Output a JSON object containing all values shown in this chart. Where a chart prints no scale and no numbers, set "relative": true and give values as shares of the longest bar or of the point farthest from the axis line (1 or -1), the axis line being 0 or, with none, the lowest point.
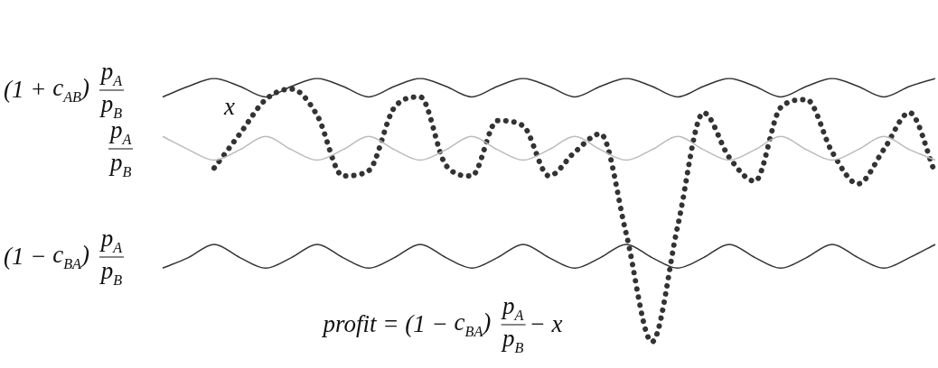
{
  "chart_data": {
    "type": "line",
    "relative": true,
    "legend": false,
    "marker": "none",
    "categories": [
      null,
      null,
      null,
      null,
      null,
      null,
      null,
      null,
      null,
      null,
      null,
      null,
      null,
      null,
      null,
      null,
      null,
      null,
      null,
      null,
      null,
      null,
      null,
      null,
      null,
      null,
      null,
      null,
      null,
      null,
      null
    ],
    "series": [
      {
        "name": "(1 + c$_{AB}$) p$_{A}$\np$_{B}$",
        "color": "#333333",
        "line_style": "solid",
        "values": [
          0.93,
          0.97,
          1.0,
          0.97,
          0.93,
          0.97,
          1.0,
          0.97,
          0.93,
          0.97,
          1.0,
          0.97,
          0.93,
          0.97,
          1.0,
          0.97,
          0.93,
          0.97,
          1.0,
          0.97,
          0.93,
          0.97,
          1.0,
          0.97,
          0.93,
          0.97,
          1.0,
          0.97,
          0.93,
          0.97,
          1.0
        ]
      },
      {
        "name": "p$_{A}$\np$_{B}$",
        "color": "#bbbbbb",
        "line_style": "solid",
        "values": [
          0.78,
          0.73,
          0.69,
          0.73,
          0.78,
          0.73,
          0.69,
          0.73,
          0.78,
          0.73,
          0.69,
          0.73,
          0.78,
          0.73,
          0.69,
          0.73,
          0.78,
          0.73,
          0.69,
          0.73,
          0.78,
          0.73,
          0.69,
          0.73,
          0.78,
          0.73,
          0.69,
          0.73,
          0.78,
          0.73,
          0.69
        ]
      },
      {
        "name": "(1 − c$_{BA}$) p$_{A}$\np$_{B}$",
        "color": "#333333",
        "line_style": "solid",
        "values": [
          0.28,
          0.32,
          0.37,
          0.32,
          0.28,
          0.32,
          0.37,
          0.32,
          0.28,
          0.32,
          0.37,
          0.32,
          0.28,
          0.32,
          0.37,
          0.32,
          0.28,
          0.32,
          0.37,
          0.32,
          0.28,
          0.32,
          0.37,
          0.32,
          0.28,
          0.32,
          0.37,
          0.32,
          0.28,
          0.32,
          0.37
        ]
      },
      {
        "name": "x",
        "color": "#333333",
        "line_style": "dotted",
        "values": [
          null,
          null,
          0.66,
          0.79,
          0.92,
          0.96,
          0.86,
          0.63,
          0.65,
          0.89,
          0.93,
          0.67,
          0.63,
          0.84,
          0.82,
          0.63,
          0.72,
          0.79,
          0.41,
          0,
          0.44,
          0.87,
          0.7,
          0.61,
          0.89,
          0.92,
          0.72,
          0.6,
          0.73,
          0.87,
          0.64
        ]
      }
    ],
    "annotations": [
      "profit = (1 − c$_{BA}$) p$_{A}$\np$_{B}$ − x"
    ]
  }
}
